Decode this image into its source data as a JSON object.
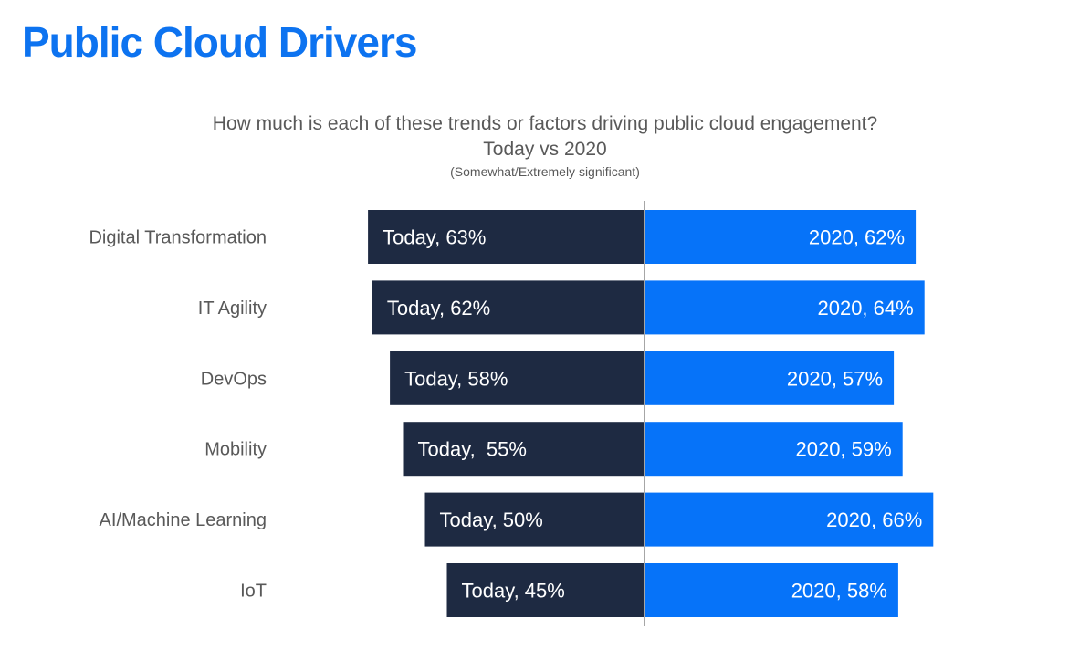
{
  "page": {
    "title": "Public Cloud Drivers"
  },
  "colors": {
    "title": "#0d73f0",
    "today": "#1e2a42",
    "y2020": "#0673f9",
    "axis_text": "#595959",
    "bar_label": "#ffffff",
    "center_line": "#a6a6a6"
  },
  "chart_data": {
    "type": "bar",
    "orientation": "horizontal-diverging",
    "title": "How much is each of these trends or factors driving public cloud engagement?",
    "subtitle": "Today vs 2020",
    "note": "(Somewhat/Extremely significant)",
    "categories": [
      "Digital Transformation",
      "IT Agility",
      "DevOps",
      "Mobility",
      "AI/Machine Learning",
      "IoT"
    ],
    "series": [
      {
        "name": "Today",
        "direction": "left",
        "values": [
          63,
          62,
          58,
          55,
          50,
          45
        ],
        "labels": [
          "Today, 63%",
          "Today, 62%",
          "Today, 58%",
          "Today,  55%",
          "Today, 50%",
          "Today, 45%"
        ]
      },
      {
        "name": "2020",
        "direction": "right",
        "values": [
          62,
          64,
          57,
          59,
          66,
          58
        ],
        "labels": [
          "2020, 62%",
          "2020, 64%",
          "2020, 57%",
          "2020, 59%",
          "2020, 66%",
          "2020, 58%"
        ]
      }
    ],
    "unit": "%",
    "grid": false,
    "legend": "none"
  }
}
